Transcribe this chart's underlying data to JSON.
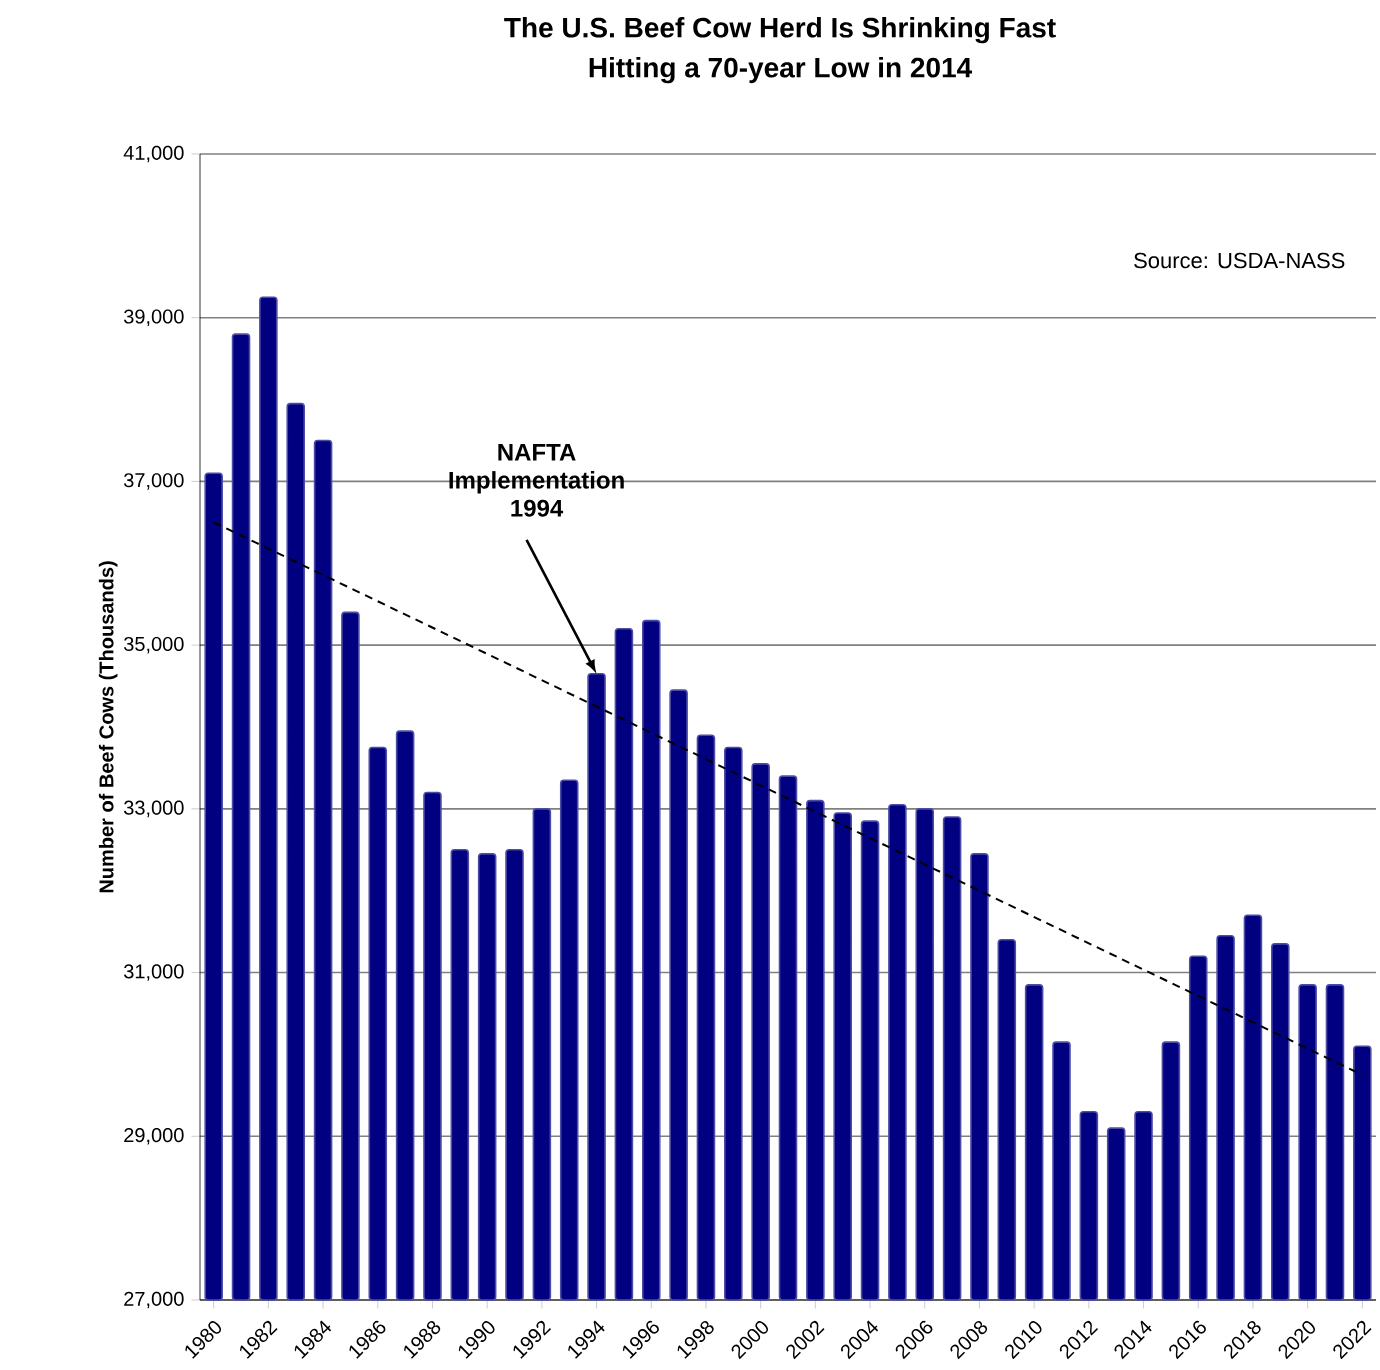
{
  "chart_data": {
    "type": "bar",
    "title": "The U.S. Beef Cow Herd Is Shrinking Fast",
    "subtitle": "Hitting a 70-year Low in 2014",
    "ylabel": "Number of Beef Cows (Thousands)",
    "x": [
      1980,
      1981,
      1982,
      1983,
      1984,
      1985,
      1986,
      1987,
      1988,
      1989,
      1990,
      1991,
      1992,
      1993,
      1994,
      1995,
      1996,
      1997,
      1998,
      1999,
      2000,
      2001,
      2002,
      2003,
      2004,
      2005,
      2006,
      2007,
      2008,
      2009,
      2010,
      2011,
      2012,
      2013,
      2014,
      2015,
      2016,
      2017,
      2018,
      2019,
      2020,
      2021,
      2022
    ],
    "xlim": [
      1979.5,
      2022.5
    ],
    "xticks": [
      1980,
      1982,
      1984,
      1986,
      1988,
      1990,
      1992,
      1994,
      1996,
      1998,
      2000,
      2002,
      2004,
      2006,
      2008,
      2010,
      2012,
      2014,
      2016,
      2018,
      2020,
      2022
    ],
    "series": [
      {
        "color": "#000080",
        "values": [
          37100,
          38800,
          39250,
          37950,
          37500,
          35400,
          33750,
          33950,
          33200,
          32500,
          32450,
          32500,
          33000,
          33350,
          34650,
          35200,
          35300,
          34450,
          33900,
          33750,
          33550,
          33400,
          33100,
          32950,
          32850,
          33050,
          33000,
          32900,
          32450,
          31400,
          30850,
          30150,
          29300,
          29100,
          29300,
          30150,
          31200,
          31450,
          31700,
          31350,
          30850,
          30850,
          30100
        ]
      },
      {
        "type": "line",
        "color": "#000000",
        "line_style": "dashed",
        "x": [
          1980,
          2022
        ],
        "values": [
          36500,
          29750
        ]
      }
    ],
    "ylim": [
      27000,
      41000
    ],
    "yticks": [
      {
        "value": 27000,
        "label": "27,000"
      },
      {
        "value": 29000,
        "label": "29,000"
      },
      {
        "value": 31000,
        "label": "31,000"
      },
      {
        "value": 33000,
        "label": "33,000"
      },
      {
        "value": 35000,
        "label": "35,000"
      },
      {
        "value": 37000,
        "label": "37,000"
      },
      {
        "value": 39000,
        "label": "39,000"
      },
      {
        "value": 41000,
        "label": "41,000"
      }
    ],
    "grid": "y",
    "annotations": [
      {
        "text": "NAFTA Implementation 1994",
        "x": 1994,
        "y": 34650
      },
      "Source:  USDA-NASS"
    ]
  }
}
